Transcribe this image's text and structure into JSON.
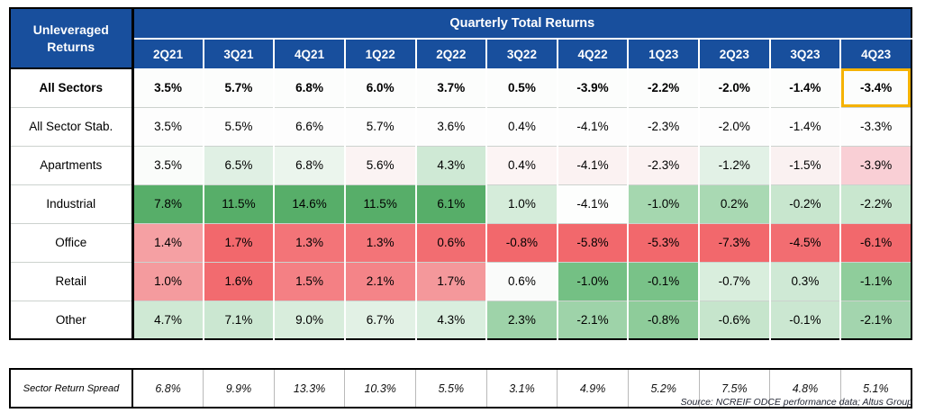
{
  "chart_data": {
    "type": "heatmap-table",
    "title": "Quarterly Total Returns",
    "row_header": "Unleveraged Returns",
    "columns": [
      "2Q21",
      "3Q21",
      "4Q21",
      "1Q22",
      "2Q22",
      "3Q22",
      "4Q22",
      "1Q23",
      "2Q23",
      "3Q23",
      "4Q23"
    ],
    "rows": [
      {
        "label": "All Sectors",
        "bold": true,
        "highlight_last_cell": true,
        "values": [
          "3.5%",
          "5.7%",
          "6.8%",
          "6.0%",
          "3.7%",
          "0.5%",
          "-3.9%",
          "-2.2%",
          "-2.0%",
          "-1.4%",
          "-3.4%"
        ],
        "colors": [
          "#FCFDFC",
          "#FCFDFC",
          "#FCFDFC",
          "#FCFDFC",
          "#FCFDFC",
          "#FCFDFC",
          "#FCFDFC",
          "#FCFDFC",
          "#FCFDFC",
          "#FCFDFC",
          "#FCFDFC"
        ]
      },
      {
        "label": "All Sector Stab.",
        "bold": false,
        "highlight_last_cell": false,
        "values": [
          "3.5%",
          "5.5%",
          "6.6%",
          "5.7%",
          "3.6%",
          "0.4%",
          "-4.1%",
          "-2.3%",
          "-2.0%",
          "-1.4%",
          "-3.3%"
        ],
        "colors": [
          "#FDFDFD",
          "#FDFDFD",
          "#FDFDFD",
          "#FDFDFD",
          "#FDFDFD",
          "#FDFDFD",
          "#FDFDFD",
          "#FDFDFD",
          "#FDFDFD",
          "#FDFDFD",
          "#FDFDFD"
        ]
      },
      {
        "label": "Apartments",
        "bold": false,
        "highlight_last_cell": false,
        "values": [
          "3.5%",
          "6.5%",
          "6.8%",
          "5.6%",
          "4.3%",
          "0.4%",
          "-4.1%",
          "-2.3%",
          "-1.2%",
          "-1.5%",
          "-3.9%"
        ],
        "colors": [
          "#FAFCFA",
          "#E0F0E4",
          "#EBF5ED",
          "#FBF3F3",
          "#CFE9D5",
          "#FCF4F4",
          "#FBF2F2",
          "#FBF2F2",
          "#E2F1E6",
          "#FAF1F1",
          "#F9CFD5"
        ]
      },
      {
        "label": "Industrial",
        "bold": false,
        "highlight_last_cell": false,
        "values": [
          "7.8%",
          "11.5%",
          "14.6%",
          "11.5%",
          "6.1%",
          "1.0%",
          "-4.1%",
          "-1.0%",
          "0.2%",
          "-0.2%",
          "-2.2%"
        ],
        "colors": [
          "#57AE69",
          "#57AE69",
          "#57AE69",
          "#57AE69",
          "#57AE69",
          "#D5ECDA",
          "#FDFEFD",
          "#A5D7AF",
          "#A9D9B3",
          "#C8E6CE",
          "#C9E7CF"
        ]
      },
      {
        "label": "Office",
        "bold": false,
        "highlight_last_cell": false,
        "values": [
          "1.4%",
          "1.7%",
          "1.3%",
          "1.3%",
          "0.6%",
          "-0.8%",
          "-5.8%",
          "-5.3%",
          "-7.3%",
          "-4.5%",
          "-6.1%"
        ],
        "colors": [
          "#F5A0A3",
          "#F2686C",
          "#F37478",
          "#F37478",
          "#F26D71",
          "#F2686C",
          "#F2686C",
          "#F2686C",
          "#F2686C",
          "#F26D71",
          "#F2686C"
        ]
      },
      {
        "label": "Retail",
        "bold": false,
        "highlight_last_cell": false,
        "values": [
          "1.0%",
          "1.6%",
          "1.5%",
          "2.1%",
          "1.7%",
          "0.6%",
          "-1.0%",
          "-0.1%",
          "-0.7%",
          "0.3%",
          "-1.1%"
        ],
        "colors": [
          "#F49B9E",
          "#F26B6F",
          "#F48084",
          "#F48488",
          "#F4989B",
          "#FAFBFA",
          "#74C084",
          "#79C288",
          "#D9EEDD",
          "#CFE9D5",
          "#8FCD9B"
        ]
      },
      {
        "label": "Other",
        "bold": false,
        "highlight_last_cell": false,
        "values": [
          "4.7%",
          "7.1%",
          "9.0%",
          "6.7%",
          "4.3%",
          "2.3%",
          "-2.1%",
          "-0.8%",
          "-0.6%",
          "-0.1%",
          "-2.1%"
        ],
        "colors": [
          "#CFE9D4",
          "#CBE7D1",
          "#D8EDDC",
          "#E2F1E5",
          "#D9EEDE",
          "#9ED3A9",
          "#9ED3A9",
          "#8ECC9A",
          "#C6E5CC",
          "#CBE7D1",
          "#A3D5AE"
        ]
      }
    ],
    "spread_row": {
      "label": "Sector Return Spread",
      "values": [
        "6.8%",
        "9.9%",
        "13.3%",
        "10.3%",
        "5.5%",
        "3.1%",
        "4.9%",
        "5.2%",
        "7.5%",
        "4.8%",
        "5.1%"
      ]
    },
    "source": "Source: NCREIF ODCE performance data; Altus Group"
  },
  "colors": {
    "header_blue": "#184F9D",
    "highlight_gold": "#F5B200",
    "strong_green": "#57AE69",
    "strong_red": "#F2686C"
  }
}
